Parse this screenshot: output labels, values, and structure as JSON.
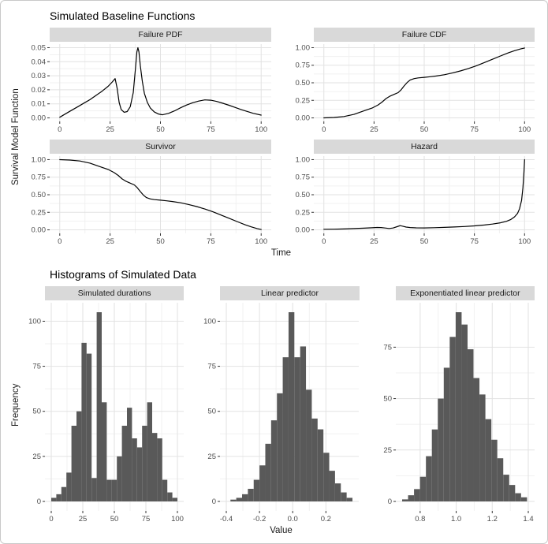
{
  "section1": {
    "title": "Simulated Baseline Functions",
    "x_axis_label": "Time",
    "y_axis_label": "Survival Model Function"
  },
  "section2": {
    "title": "Histograms of Simulated Data",
    "x_axis_label": "Value",
    "y_axis_label": "Frequency"
  },
  "style": {
    "strip_bg": "#d9d9d9",
    "panel_bg": "#ffffff",
    "grid_major": "#e2e2e2",
    "grid_minor": "#f1f1f1",
    "tick_mark_color": "#333333",
    "tick_label_color": "#4d4d4d",
    "line_color": "#000000",
    "bar_fill": "#595959"
  },
  "chart_data": [
    {
      "id": "failure-pdf",
      "type": "line",
      "title": "Failure PDF",
      "x": {
        "domain": [
          0,
          100
        ],
        "ticks": [
          0,
          25,
          50,
          75,
          100
        ],
        "tick_labels": [
          "0",
          "25",
          "50",
          "75",
          "100"
        ]
      },
      "y": {
        "domain": [
          0,
          0.05
        ],
        "ticks": [
          0,
          0.01,
          0.02,
          0.03,
          0.04,
          0.05
        ],
        "tick_labels": [
          "0.00",
          "0.01",
          "0.02",
          "0.03",
          "0.04",
          "0.05"
        ]
      },
      "points": [
        [
          0,
          0.0005
        ],
        [
          3,
          0.003
        ],
        [
          6,
          0.0055
        ],
        [
          9,
          0.008
        ],
        [
          12,
          0.0105
        ],
        [
          15,
          0.013
        ],
        [
          18,
          0.016
        ],
        [
          21,
          0.019
        ],
        [
          24,
          0.0225
        ],
        [
          26,
          0.0255
        ],
        [
          27.5,
          0.028
        ],
        [
          28.5,
          0.021
        ],
        [
          29.5,
          0.011
        ],
        [
          30.5,
          0.006
        ],
        [
          32,
          0.004
        ],
        [
          33.5,
          0.0045
        ],
        [
          35,
          0.008
        ],
        [
          36.5,
          0.018
        ],
        [
          37.5,
          0.034
        ],
        [
          38.3,
          0.047
        ],
        [
          38.8,
          0.05
        ],
        [
          39.3,
          0.047
        ],
        [
          40,
          0.037
        ],
        [
          41,
          0.026
        ],
        [
          42,
          0.0175
        ],
        [
          43.5,
          0.011
        ],
        [
          45,
          0.007
        ],
        [
          47,
          0.0042
        ],
        [
          49,
          0.0028
        ],
        [
          51,
          0.0022
        ],
        [
          54,
          0.0032
        ],
        [
          57,
          0.005
        ],
        [
          60,
          0.0072
        ],
        [
          63,
          0.0092
        ],
        [
          66,
          0.0108
        ],
        [
          69,
          0.012
        ],
        [
          72,
          0.0128
        ],
        [
          75,
          0.0126
        ],
        [
          78,
          0.0117
        ],
        [
          81,
          0.0104
        ],
        [
          84,
          0.009
        ],
        [
          87,
          0.0075
        ],
        [
          90,
          0.006
        ],
        [
          93,
          0.0046
        ],
        [
          96,
          0.0033
        ],
        [
          100,
          0.002
        ]
      ]
    },
    {
      "id": "failure-cdf",
      "type": "line",
      "title": "Failure CDF",
      "x": {
        "domain": [
          0,
          100
        ],
        "ticks": [
          0,
          25,
          50,
          75,
          100
        ],
        "tick_labels": [
          "0",
          "25",
          "50",
          "75",
          "100"
        ]
      },
      "y": {
        "domain": [
          0,
          1
        ],
        "ticks": [
          0,
          0.25,
          0.5,
          0.75,
          1
        ],
        "tick_labels": [
          "0.00",
          "0.25",
          "0.50",
          "0.75",
          "1.00"
        ]
      },
      "points": [
        [
          0,
          0
        ],
        [
          5,
          0.006
        ],
        [
          10,
          0.02
        ],
        [
          15,
          0.05
        ],
        [
          20,
          0.1
        ],
        [
          24,
          0.14
        ],
        [
          27,
          0.185
        ],
        [
          29,
          0.225
        ],
        [
          31,
          0.275
        ],
        [
          33,
          0.31
        ],
        [
          35,
          0.335
        ],
        [
          37,
          0.36
        ],
        [
          38.5,
          0.4
        ],
        [
          40,
          0.455
        ],
        [
          41.5,
          0.505
        ],
        [
          43,
          0.54
        ],
        [
          45,
          0.56
        ],
        [
          47,
          0.57
        ],
        [
          50,
          0.578
        ],
        [
          53,
          0.586
        ],
        [
          56,
          0.597
        ],
        [
          60,
          0.615
        ],
        [
          64,
          0.639
        ],
        [
          68,
          0.668
        ],
        [
          72,
          0.703
        ],
        [
          76,
          0.743
        ],
        [
          80,
          0.788
        ],
        [
          84,
          0.835
        ],
        [
          88,
          0.882
        ],
        [
          92,
          0.928
        ],
        [
          95,
          0.957
        ],
        [
          98,
          0.982
        ],
        [
          100,
          0.995
        ]
      ]
    },
    {
      "id": "survivor",
      "type": "line",
      "title": "Survivor",
      "x": {
        "domain": [
          0,
          100
        ],
        "ticks": [
          0,
          25,
          50,
          75,
          100
        ],
        "tick_labels": [
          "0",
          "25",
          "50",
          "75",
          "100"
        ]
      },
      "y": {
        "domain": [
          0,
          1
        ],
        "ticks": [
          0,
          0.25,
          0.5,
          0.75,
          1
        ],
        "tick_labels": [
          "0.00",
          "0.25",
          "0.50",
          "0.75",
          "1.00"
        ]
      },
      "points": [
        [
          0,
          1
        ],
        [
          5,
          0.994
        ],
        [
          10,
          0.98
        ],
        [
          15,
          0.95
        ],
        [
          20,
          0.9
        ],
        [
          24,
          0.86
        ],
        [
          27,
          0.815
        ],
        [
          29,
          0.775
        ],
        [
          31,
          0.725
        ],
        [
          33,
          0.69
        ],
        [
          35,
          0.665
        ],
        [
          37,
          0.64
        ],
        [
          38.5,
          0.6
        ],
        [
          40,
          0.545
        ],
        [
          41.5,
          0.495
        ],
        [
          43,
          0.46
        ],
        [
          45,
          0.44
        ],
        [
          47,
          0.43
        ],
        [
          50,
          0.422
        ],
        [
          53,
          0.414
        ],
        [
          56,
          0.403
        ],
        [
          60,
          0.385
        ],
        [
          64,
          0.361
        ],
        [
          68,
          0.332
        ],
        [
          72,
          0.297
        ],
        [
          76,
          0.257
        ],
        [
          80,
          0.212
        ],
        [
          84,
          0.165
        ],
        [
          88,
          0.118
        ],
        [
          92,
          0.072
        ],
        [
          95,
          0.043
        ],
        [
          98,
          0.018
        ],
        [
          100,
          0.005
        ]
      ]
    },
    {
      "id": "hazard",
      "type": "line",
      "title": "Hazard",
      "x": {
        "domain": [
          0,
          100
        ],
        "ticks": [
          0,
          25,
          50,
          75,
          100
        ],
        "tick_labels": [
          "0",
          "25",
          "50",
          "75",
          "100"
        ]
      },
      "y": {
        "domain": [
          0,
          1
        ],
        "ticks": [
          0,
          0.25,
          0.5,
          0.75,
          1
        ],
        "tick_labels": [
          "0.00",
          "0.25",
          "0.50",
          "0.75",
          "1.00"
        ]
      },
      "points": [
        [
          0,
          0.008
        ],
        [
          5,
          0.01
        ],
        [
          10,
          0.013
        ],
        [
          15,
          0.018
        ],
        [
          20,
          0.024
        ],
        [
          24,
          0.03
        ],
        [
          26.5,
          0.034
        ],
        [
          28.5,
          0.033
        ],
        [
          30.5,
          0.026
        ],
        [
          32.5,
          0.02
        ],
        [
          34.5,
          0.026
        ],
        [
          36.5,
          0.045
        ],
        [
          38,
          0.06
        ],
        [
          39.5,
          0.05
        ],
        [
          41,
          0.04
        ],
        [
          43,
          0.033
        ],
        [
          46,
          0.029
        ],
        [
          50,
          0.028
        ],
        [
          55,
          0.031
        ],
        [
          60,
          0.035
        ],
        [
          65,
          0.041
        ],
        [
          70,
          0.048
        ],
        [
          75,
          0.057
        ],
        [
          80,
          0.069
        ],
        [
          84,
          0.082
        ],
        [
          88,
          0.1
        ],
        [
          91,
          0.122
        ],
        [
          93,
          0.145
        ],
        [
          95,
          0.185
        ],
        [
          96.5,
          0.235
        ],
        [
          97.5,
          0.3
        ],
        [
          98.5,
          0.42
        ],
        [
          99.2,
          0.6
        ],
        [
          99.7,
          0.82
        ],
        [
          100,
          1
        ]
      ]
    },
    {
      "id": "simulated-durations",
      "type": "histogram",
      "title": "Simulated durations",
      "x": {
        "domain": [
          0,
          100
        ],
        "ticks": [
          0,
          25,
          50,
          75,
          100
        ],
        "tick_labels": [
          "0",
          "25",
          "50",
          "75",
          "100"
        ]
      },
      "y": {
        "domain": [
          0,
          105
        ],
        "ticks": [
          0,
          25,
          50,
          75,
          100
        ],
        "tick_labels": [
          "0",
          "25",
          "50",
          "75",
          "100"
        ]
      },
      "bin_start": 0,
      "bin_width": 4,
      "frequencies": [
        2,
        4,
        8,
        16,
        42,
        50,
        88,
        82,
        13,
        105,
        55,
        12,
        12,
        25,
        42,
        52,
        35,
        30,
        42,
        55,
        38,
        35,
        12,
        5,
        2
      ]
    },
    {
      "id": "linear-predictor",
      "type": "histogram",
      "title": "Linear predictor",
      "x": {
        "domain": [
          -0.4,
          0.36
        ],
        "ticks": [
          -0.4,
          -0.2,
          0,
          0.2
        ],
        "tick_labels": [
          "-0.4",
          "-0.2",
          "0.0",
          "0.2"
        ]
      },
      "y": {
        "domain": [
          0,
          105
        ],
        "ticks": [
          0,
          25,
          50,
          75,
          100
        ],
        "tick_labels": [
          "0",
          "25",
          "50",
          "75",
          "100"
        ]
      },
      "bin_start": -0.375,
      "bin_width": 0.035,
      "frequencies": [
        1,
        2,
        4,
        7,
        12,
        20,
        32,
        45,
        60,
        80,
        105,
        80,
        86,
        62,
        46,
        40,
        27,
        17,
        10,
        5,
        2
      ]
    },
    {
      "id": "exponentiated-linear-predictor",
      "type": "histogram",
      "title": "Exponentiated linear predictor",
      "x": {
        "domain": [
          0.7,
          1.4
        ],
        "ticks": [
          0.8,
          1,
          1.2,
          1.4
        ],
        "tick_labels": [
          "0.8",
          "1.0",
          "1.2",
          "1.4"
        ]
      },
      "y": {
        "domain": [
          0,
          92
        ],
        "ticks": [
          0,
          25,
          50,
          75
        ],
        "tick_labels": [
          "0",
          "25",
          "50",
          "75"
        ]
      },
      "bin_start": 0.7,
      "bin_width": 0.033,
      "frequencies": [
        1,
        3,
        6,
        12,
        22,
        35,
        50,
        65,
        80,
        92,
        86,
        74,
        60,
        52,
        40,
        30,
        21,
        13,
        8,
        4,
        2
      ]
    }
  ]
}
